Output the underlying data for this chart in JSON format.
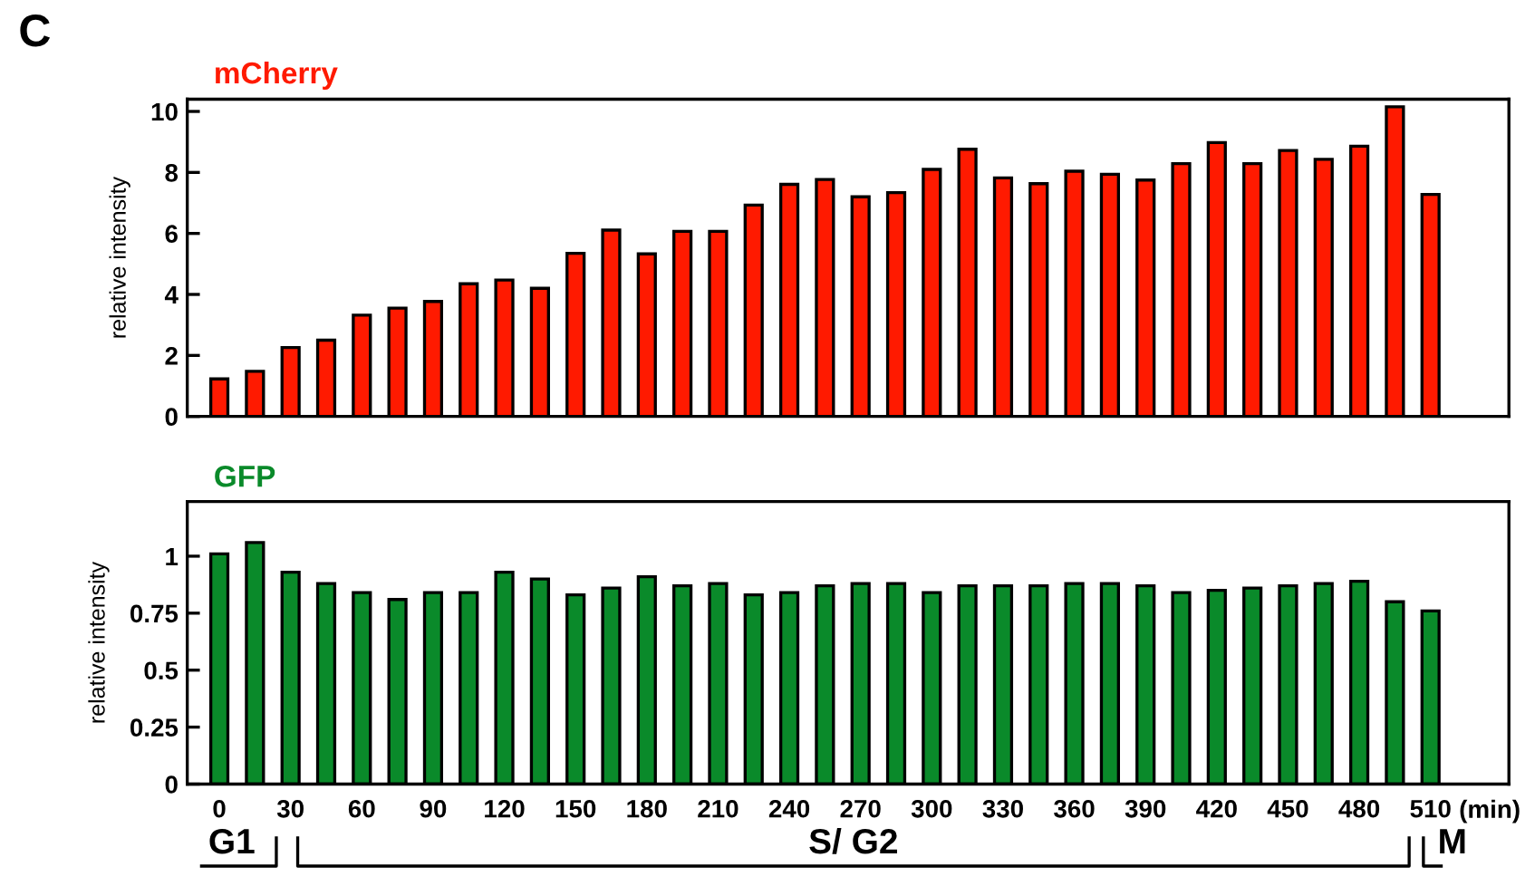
{
  "chart_data": [
    {
      "type": "bar",
      "title": "mCherry",
      "ylabel": "relative intensity",
      "annotations": [
        "C"
      ],
      "tick_labels": "y",
      "categories": [
        "0",
        null,
        "30",
        null,
        "60",
        null,
        "90",
        null,
        "120",
        null,
        "150",
        null,
        "180",
        null,
        "210",
        null,
        "240",
        null,
        "270",
        null,
        "300",
        null,
        "330",
        null,
        "360",
        null,
        "390",
        null,
        "420",
        null,
        "450",
        null,
        "480",
        null,
        "510"
      ],
      "series": [
        {
          "color": "#ff1a00",
          "values": [
            1.23,
            1.48,
            2.26,
            2.5,
            3.32,
            3.55,
            3.77,
            4.35,
            4.47,
            4.2,
            5.35,
            6.11,
            5.33,
            6.07,
            6.07,
            6.93,
            7.61,
            7.77,
            7.2,
            7.34,
            8.1,
            8.76,
            7.82,
            7.63,
            8.04,
            7.94,
            7.75,
            8.29,
            8.98,
            8.29,
            8.72,
            8.43,
            8.86,
            10.15,
            7.28
          ]
        }
      ],
      "ylim": [
        0,
        10.4
      ],
      "yticks": [
        0,
        2,
        4,
        6,
        8,
        10
      ]
    },
    {
      "type": "bar",
      "title": "GFP",
      "ylabel": "relative intensity",
      "annotations": [
        "(min)",
        "G1",
        "S/ G2",
        "M"
      ],
      "categories": [
        "0",
        null,
        "30",
        null,
        "60",
        null,
        "90",
        null,
        "120",
        null,
        "150",
        null,
        "180",
        null,
        "210",
        null,
        "240",
        null,
        "270",
        null,
        "300",
        null,
        "330",
        null,
        "360",
        null,
        "390",
        null,
        "420",
        null,
        "450",
        null,
        "480",
        null,
        "510"
      ],
      "series": [
        {
          "color": "#0a8a2a",
          "values": [
            1.01,
            1.06,
            0.93,
            0.88,
            0.84,
            0.81,
            0.84,
            0.84,
            0.93,
            0.9,
            0.83,
            0.86,
            0.91,
            0.87,
            0.88,
            0.83,
            0.84,
            0.87,
            0.88,
            0.88,
            0.84,
            0.87,
            0.87,
            0.87,
            0.88,
            0.88,
            0.87,
            0.84,
            0.85,
            0.86,
            0.87,
            0.88,
            0.89,
            0.8,
            0.76
          ]
        }
      ],
      "ylim": [
        0,
        1.24
      ],
      "yticks": [
        0,
        0.25,
        0.5,
        0.75,
        1
      ]
    }
  ]
}
